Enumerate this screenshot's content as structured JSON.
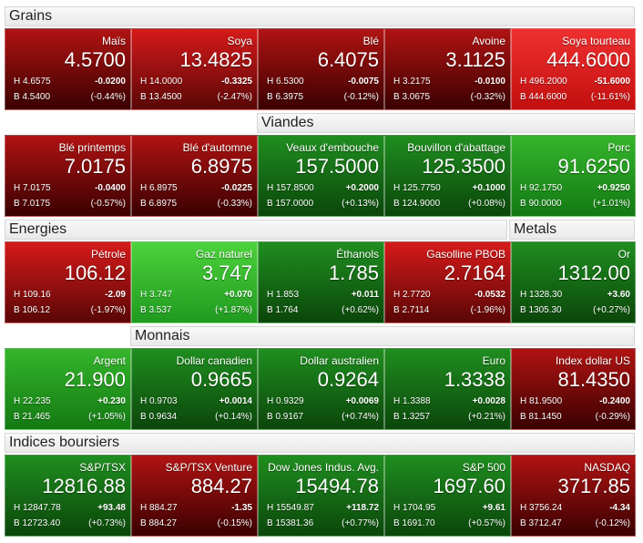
{
  "sections": {
    "grains": "Grains",
    "viandes": "Viandes",
    "energies": "Energies",
    "metals": "Metals",
    "monnais": "Monnais",
    "indices": "Indices boursiers"
  },
  "tiles": [
    {
      "name": "Maïs",
      "price": "4.5700",
      "high": "H 4.6575",
      "change": "-0.0200",
      "low": "B 4.5400",
      "pct": "(-0.44%)"
    },
    {
      "name": "Soya",
      "price": "13.4825",
      "high": "H 14.0000",
      "change": "-0.3325",
      "low": "B 13.4500",
      "pct": "(-2.47%)"
    },
    {
      "name": "Blé",
      "price": "6.4075",
      "high": "H 6.5300",
      "change": "-0.0075",
      "low": "B 6.3975",
      "pct": "(-0.12%)"
    },
    {
      "name": "Avoine",
      "price": "3.1125",
      "high": "H 3.2175",
      "change": "-0.0100",
      "low": "B 3.0675",
      "pct": "(-0.32%)"
    },
    {
      "name": "Soya tourteau",
      "price": "444.6000",
      "high": "H 496.2000",
      "change": "-51.6000",
      "low": "B 444.6000",
      "pct": "(-11.61%)"
    },
    {
      "name": "Blé printemps",
      "price": "7.0175",
      "high": "H 7.0175",
      "change": "-0.0400",
      "low": "B 7.0175",
      "pct": "(-0.57%)"
    },
    {
      "name": "Blé d'automne",
      "price": "6.8975",
      "high": "H 6.8975",
      "change": "-0.0225",
      "low": "B 6.8975",
      "pct": "(-0.33%)"
    },
    {
      "name": "Veaux d'embouche",
      "price": "157.5000",
      "high": "H 157.8500",
      "change": "+0.2000",
      "low": "B 157.0000",
      "pct": "(+0.13%)"
    },
    {
      "name": "Bouvillon d'abattage",
      "price": "125.3500",
      "high": "H 125.7750",
      "change": "+0.1000",
      "low": "B 124.9000",
      "pct": "(+0.08%)"
    },
    {
      "name": "Porc",
      "price": "91.6250",
      "high": "H 92.1750",
      "change": "+0.9250",
      "low": "B 90.0000",
      "pct": "(+1.01%)"
    },
    {
      "name": "Pétrole",
      "price": "106.12",
      "high": "H 109.16",
      "change": "-2.09",
      "low": "B 106.12",
      "pct": "(-1.97%)"
    },
    {
      "name": "Gaz naturel",
      "price": "3.747",
      "high": "H 3.747",
      "change": "+0.070",
      "low": "B 3.537",
      "pct": "(+1.87%)"
    },
    {
      "name": "Éthanols",
      "price": "1.785",
      "high": "H 1.853",
      "change": "+0.011",
      "low": "B 1.764",
      "pct": "(+0.62%)"
    },
    {
      "name": "Gasolline PBOB",
      "price": "2.7164",
      "high": "H 2.7720",
      "change": "-0.0532",
      "low": "B 2.7114",
      "pct": "(-1.96%)"
    },
    {
      "name": "Or",
      "price": "1312.00",
      "high": "H 1328.30",
      "change": "+3.60",
      "low": "B 1305.30",
      "pct": "(+0.27%)"
    },
    {
      "name": "Argent",
      "price": "21.900",
      "high": "H 22.235",
      "change": "+0.230",
      "low": "B 21.465",
      "pct": "(+1.05%)"
    },
    {
      "name": "Dollar canadien",
      "price": "0.9665",
      "high": "H 0.9703",
      "change": "+0.0014",
      "low": "B 0.9634",
      "pct": "(+0.14%)"
    },
    {
      "name": "Dollar australien",
      "price": "0.9264",
      "high": "H 0.9329",
      "change": "+0.0069",
      "low": "B 0.9167",
      "pct": "(+0.74%)"
    },
    {
      "name": "Euro",
      "price": "1.3338",
      "high": "H 1.3388",
      "change": "+0.0028",
      "low": "B 1.3257",
      "pct": "(+0.21%)"
    },
    {
      "name": "Index dollar US",
      "price": "81.4350",
      "high": "H 81.9500",
      "change": "-0.2400",
      "low": "B 81.1450",
      "pct": "(-0.29%)"
    },
    {
      "name": "S&P/TSX",
      "price": "12816.88",
      "high": "H 12847.78",
      "change": "+93.48",
      "low": "B 12723.40",
      "pct": "(+0.73%)"
    },
    {
      "name": "S&P/TSX Venture",
      "price": "884.27",
      "high": "H 884.27",
      "change": "-1.35",
      "low": "B 884.27",
      "pct": "(-0.15%)"
    },
    {
      "name": "Dow Jones Indus. Avg.",
      "price": "15494.78",
      "high": "H 15549.87",
      "change": "+118.72",
      "low": "B 15381.36",
      "pct": "(+0.77%)"
    },
    {
      "name": "S&P 500",
      "price": "1697.60",
      "high": "H 1704.95",
      "change": "+9.61",
      "low": "B 1691.70",
      "pct": "(+0.57%)"
    },
    {
      "name": "NASDAQ",
      "price": "3717.85",
      "high": "H 3756.24",
      "change": "-4.34",
      "low": "B 3712.47",
      "pct": "(-0.12%)"
    }
  ],
  "colors": {
    "red-dark": "#6e0808",
    "red-mid": "#b01111",
    "red-bright": "#e02222",
    "green-dark": "#0f5c0f",
    "green-mid": "#1e8e1e",
    "green-bright": "#2fb52f"
  }
}
